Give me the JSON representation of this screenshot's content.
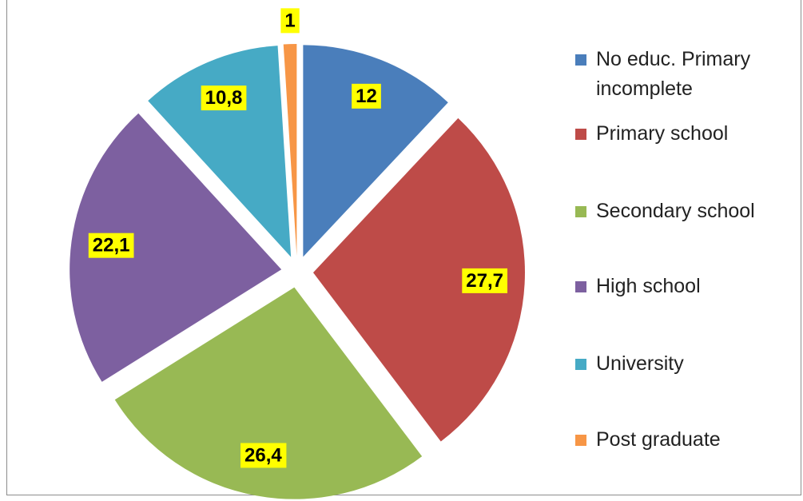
{
  "chart_data": {
    "type": "pie",
    "categories": [
      "No educ. Primary incomplete",
      "Primary school",
      "Secondary school",
      "High school",
      "University",
      "Post graduate"
    ],
    "values": [
      12,
      27.7,
      26.4,
      22.1,
      10.8,
      1
    ],
    "value_labels": [
      "12",
      "27,7",
      "26,4",
      "22,1",
      "10,8",
      "1"
    ],
    "colors": [
      "#4a7ebb",
      "#be4b48",
      "#98b954",
      "#7d60a0",
      "#46aac5",
      "#f79646"
    ],
    "legend": "right"
  }
}
